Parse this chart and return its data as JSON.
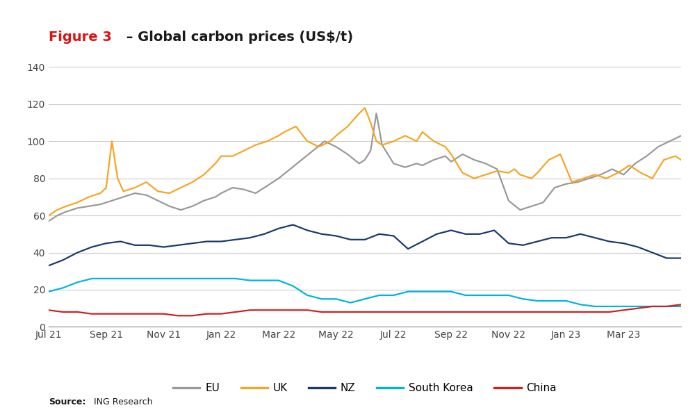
{
  "title_red": "Figure 3",
  "title_black": " – Global carbon prices (US$/t)",
  "title_fontsize": 14,
  "source_bold": "Source:",
  "source_normal": " ING Research",
  "xlim_start": 0,
  "xlim_end": 22,
  "ylim": [
    0,
    140
  ],
  "yticks": [
    0,
    20,
    40,
    60,
    80,
    100,
    120,
    140
  ],
  "xtick_labels": [
    "Jul 21",
    "Sep 21",
    "Nov 21",
    "Jan 22",
    "Mar 22",
    "May 22",
    "Jul 22",
    "Sep 22",
    "Nov 22",
    "Jan 23",
    "Mar 23"
  ],
  "xtick_positions": [
    0,
    2,
    4,
    6,
    8,
    10,
    12,
    14,
    16,
    18,
    20
  ],
  "background_color": "#ffffff",
  "grid_color": "#cccccc",
  "EU": {
    "color": "#999999",
    "x": [
      0,
      0.3,
      0.6,
      1.0,
      1.4,
      1.8,
      2.2,
      2.6,
      3.0,
      3.4,
      3.8,
      4.2,
      4.6,
      5.0,
      5.4,
      5.8,
      6.0,
      6.4,
      6.8,
      7.2,
      7.6,
      8.0,
      8.4,
      8.8,
      9.2,
      9.6,
      10.0,
      10.4,
      10.8,
      11.0,
      11.2,
      11.4,
      11.6,
      12.0,
      12.4,
      12.8,
      13.0,
      13.4,
      13.8,
      14.0,
      14.4,
      14.8,
      15.2,
      15.6,
      16.0,
      16.4,
      16.8,
      17.2,
      17.6,
      18.0,
      18.4,
      18.8,
      19.2,
      19.6,
      20.0,
      20.4,
      20.8,
      21.2,
      21.6,
      22.0
    ],
    "y": [
      57,
      60,
      62,
      64,
      65,
      66,
      68,
      70,
      72,
      71,
      68,
      65,
      63,
      65,
      68,
      70,
      72,
      75,
      74,
      72,
      76,
      80,
      85,
      90,
      95,
      100,
      97,
      93,
      88,
      90,
      95,
      115,
      98,
      88,
      86,
      88,
      87,
      90,
      92,
      89,
      93,
      90,
      88,
      85,
      68,
      63,
      65,
      67,
      75,
      77,
      78,
      80,
      82,
      85,
      82,
      88,
      92,
      97,
      100,
      103
    ]
  },
  "UK": {
    "color": "#f5a623",
    "x": [
      0,
      0.3,
      0.6,
      1.0,
      1.4,
      1.8,
      2.0,
      2.2,
      2.4,
      2.6,
      3.0,
      3.4,
      3.8,
      4.2,
      4.6,
      5.0,
      5.4,
      5.8,
      6.0,
      6.4,
      6.8,
      7.2,
      7.6,
      8.0,
      8.2,
      8.6,
      9.0,
      9.4,
      9.8,
      10.0,
      10.4,
      10.8,
      11.0,
      11.2,
      11.4,
      11.6,
      12.0,
      12.4,
      12.8,
      13.0,
      13.4,
      13.8,
      14.0,
      14.4,
      14.8,
      15.2,
      15.6,
      16.0,
      16.2,
      16.4,
      16.8,
      17.0,
      17.4,
      17.8,
      18.2,
      18.6,
      19.0,
      19.4,
      19.8,
      20.2,
      20.6,
      21.0,
      21.4,
      21.8,
      22.0
    ],
    "y": [
      60,
      63,
      65,
      67,
      70,
      72,
      75,
      100,
      80,
      73,
      75,
      78,
      73,
      72,
      75,
      78,
      82,
      88,
      92,
      92,
      95,
      98,
      100,
      103,
      105,
      108,
      100,
      97,
      100,
      103,
      108,
      115,
      118,
      110,
      100,
      98,
      100,
      103,
      100,
      105,
      100,
      97,
      93,
      83,
      80,
      82,
      84,
      83,
      85,
      82,
      80,
      83,
      90,
      93,
      78,
      80,
      82,
      80,
      83,
      87,
      83,
      80,
      90,
      92,
      90
    ]
  },
  "NZ": {
    "color": "#1a3a6b",
    "x": [
      0,
      0.5,
      1.0,
      1.5,
      2.0,
      2.5,
      3.0,
      3.5,
      4.0,
      4.5,
      5.0,
      5.5,
      6.0,
      6.5,
      7.0,
      7.5,
      8.0,
      8.5,
      9.0,
      9.5,
      10.0,
      10.5,
      11.0,
      11.5,
      12.0,
      12.5,
      13.0,
      13.5,
      14.0,
      14.5,
      15.0,
      15.5,
      16.0,
      16.5,
      17.0,
      17.5,
      18.0,
      18.5,
      19.0,
      19.5,
      20.0,
      20.5,
      21.0,
      21.5,
      22.0
    ],
    "y": [
      33,
      36,
      40,
      43,
      45,
      46,
      44,
      44,
      43,
      44,
      45,
      46,
      46,
      47,
      48,
      50,
      53,
      55,
      52,
      50,
      49,
      47,
      47,
      50,
      49,
      42,
      46,
      50,
      52,
      50,
      50,
      52,
      45,
      44,
      46,
      48,
      48,
      50,
      48,
      46,
      45,
      43,
      40,
      37,
      37
    ]
  },
  "SouthKorea": {
    "color": "#00b4d8",
    "x": [
      0,
      0.5,
      1.0,
      1.5,
      2.0,
      2.5,
      3.0,
      3.5,
      4.0,
      4.5,
      5.0,
      5.5,
      6.0,
      6.5,
      7.0,
      7.5,
      8.0,
      8.5,
      9.0,
      9.5,
      10.0,
      10.5,
      11.0,
      11.5,
      12.0,
      12.5,
      13.0,
      13.5,
      14.0,
      14.5,
      15.0,
      15.5,
      16.0,
      16.5,
      17.0,
      17.5,
      18.0,
      18.5,
      19.0,
      19.5,
      20.0,
      20.5,
      21.0,
      21.5,
      22.0
    ],
    "y": [
      19,
      21,
      24,
      26,
      26,
      26,
      26,
      26,
      26,
      26,
      26,
      26,
      26,
      26,
      25,
      25,
      25,
      22,
      17,
      15,
      15,
      13,
      15,
      17,
      17,
      19,
      19,
      19,
      19,
      17,
      17,
      17,
      17,
      15,
      14,
      14,
      14,
      12,
      11,
      11,
      11,
      11,
      11,
      11,
      11
    ]
  },
  "China": {
    "color": "#cc2222",
    "x": [
      0,
      0.5,
      1.0,
      1.5,
      2.0,
      2.5,
      3.0,
      3.5,
      4.0,
      4.5,
      5.0,
      5.5,
      6.0,
      6.5,
      7.0,
      7.5,
      8.0,
      8.5,
      9.0,
      9.5,
      10.0,
      10.5,
      11.0,
      11.5,
      12.0,
      12.5,
      13.0,
      13.5,
      14.0,
      14.5,
      15.0,
      15.5,
      16.0,
      16.5,
      17.0,
      17.5,
      18.0,
      18.5,
      19.0,
      19.5,
      20.0,
      20.5,
      21.0,
      21.5,
      22.0
    ],
    "y": [
      9,
      8,
      8,
      7,
      7,
      7,
      7,
      7,
      7,
      6,
      6,
      7,
      7,
      8,
      9,
      9,
      9,
      9,
      9,
      8,
      8,
      8,
      8,
      8,
      8,
      8,
      8,
      8,
      8,
      8,
      8,
      8,
      8,
      8,
      8,
      8,
      8,
      8,
      8,
      8,
      9,
      10,
      11,
      11,
      12
    ]
  },
  "legend": [
    {
      "label": "EU",
      "color": "#999999"
    },
    {
      "label": "UK",
      "color": "#f5a623"
    },
    {
      "label": "NZ",
      "color": "#1a3a6b"
    },
    {
      "label": "South Korea",
      "color": "#00b4d8"
    },
    {
      "label": "China",
      "color": "#cc2222"
    }
  ],
  "linewidth": 1.6
}
